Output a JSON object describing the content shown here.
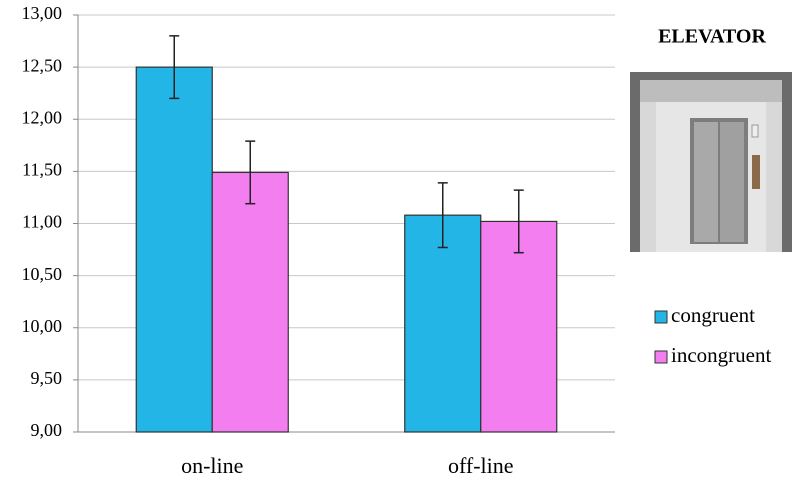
{
  "chart_data": {
    "type": "bar",
    "title": "ELEVATOR",
    "categories": [
      "on-line",
      "off-line"
    ],
    "series": [
      {
        "name": "congruent",
        "color": "#22b5e6",
        "values": [
          12.5,
          11.08
        ],
        "errors": [
          0.3,
          0.31
        ]
      },
      {
        "name": "incongruent",
        "color": "#f37ef0",
        "values": [
          11.49,
          11.02
        ],
        "errors": [
          0.3,
          0.3
        ]
      }
    ],
    "ylim": [
      9,
      13
    ],
    "yticks": [
      {
        "value": 9,
        "label": "9,00"
      },
      {
        "value": 9.5,
        "label": "9,50"
      },
      {
        "value": 10,
        "label": "10,00"
      },
      {
        "value": 10.5,
        "label": "10,50"
      },
      {
        "value": 11,
        "label": "11,00"
      },
      {
        "value": 11.5,
        "label": "11,50"
      },
      {
        "value": 12,
        "label": "12,00"
      },
      {
        "value": 12.5,
        "label": "12,50"
      },
      {
        "value": 13,
        "label": "13,00"
      }
    ],
    "grid": true,
    "legend": "right"
  }
}
